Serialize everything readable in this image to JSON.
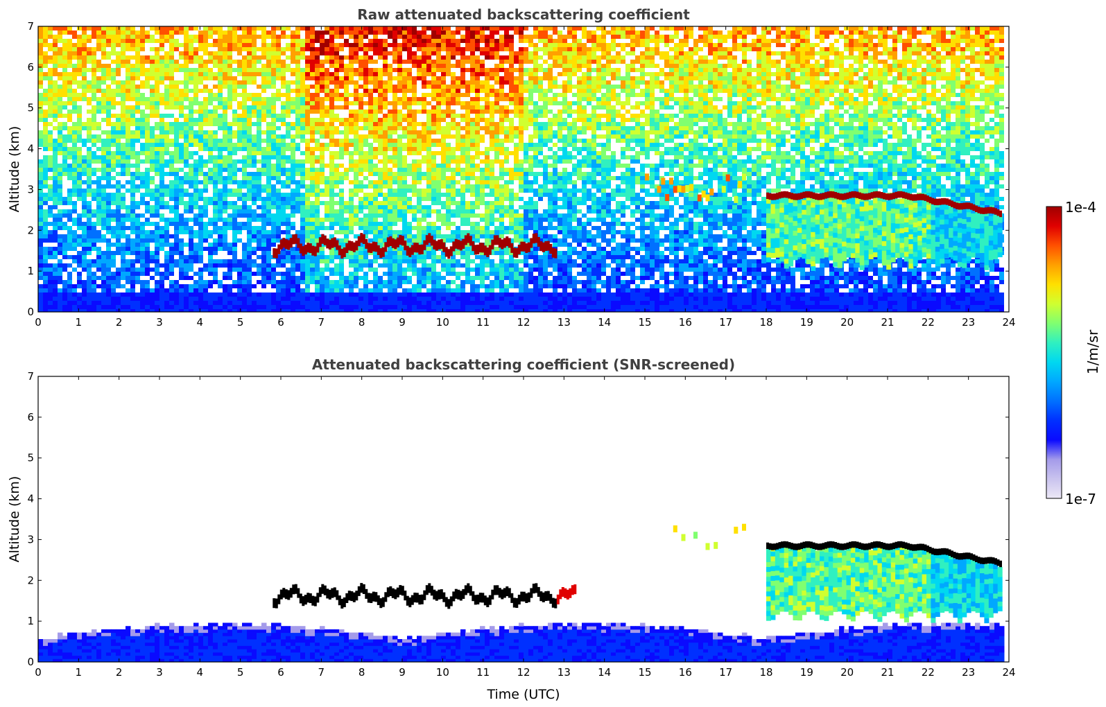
{
  "chart_data": [
    {
      "type": "heatmap",
      "panel": "top",
      "title": "Raw attenuated backscattering coefficient",
      "xlabel": "",
      "ylabel": "Altitude (km)",
      "xlim": [
        0,
        24
      ],
      "ylim": [
        0,
        7
      ],
      "x_ticks": [
        0,
        1,
        2,
        3,
        4,
        5,
        6,
        7,
        8,
        9,
        10,
        11,
        12,
        13,
        14,
        15,
        16,
        17,
        18,
        19,
        20,
        21,
        22,
        23,
        24
      ],
      "y_ticks": [
        0,
        1,
        2,
        3,
        4,
        5,
        6,
        7
      ],
      "data_end_hour": 23.8,
      "features": [
        {
          "name": "boundary layer",
          "start": 0,
          "end": 23.8,
          "bottom_km": 0,
          "top_km": 0.5
        },
        {
          "name": "cloud layer 1",
          "start": 5.8,
          "end": 12.8,
          "altitude_km": 1.65
        },
        {
          "name": "cloud layer 2",
          "start": 18.0,
          "end": 23.8,
          "altitude_km_start": 2.85,
          "altitude_km_end": 2.4
        },
        {
          "name": "precipitation virga",
          "start": 18.0,
          "end": 23.8,
          "bottom_km": 1.0,
          "top_km": 2.8
        },
        {
          "name": "mid-level cloud fragments",
          "start": 15.0,
          "end": 17.6,
          "altitude_km": 3.1
        }
      ]
    },
    {
      "type": "heatmap",
      "panel": "bottom",
      "title": "Attenuated backscattering coefficient (SNR-screened)",
      "xlabel": "Time (UTC)",
      "ylabel": "Altitude (km)",
      "xlim": [
        0,
        24
      ],
      "ylim": [
        0,
        7
      ],
      "x_ticks": [
        0,
        1,
        2,
        3,
        4,
        5,
        6,
        7,
        8,
        9,
        10,
        11,
        12,
        13,
        14,
        15,
        16,
        17,
        18,
        19,
        20,
        21,
        22,
        23,
        24
      ],
      "y_ticks": [
        0,
        1,
        2,
        3,
        4,
        5,
        6,
        7
      ],
      "data_end_hour": 23.8,
      "features": [
        {
          "name": "boundary layer",
          "start": 0,
          "end": 23.8,
          "bottom_km": 0,
          "top_km": 0.9
        },
        {
          "name": "cloud layer 1",
          "start": 5.8,
          "end": 13.3,
          "altitude_km": 1.65
        },
        {
          "name": "cloud layer 2",
          "start": 18.0,
          "end": 23.8,
          "altitude_km_start": 2.85,
          "altitude_km_end": 2.4
        },
        {
          "name": "precipitation virga",
          "start": 18.0,
          "end": 23.8,
          "bottom_km": 0.95,
          "top_km": 2.8
        }
      ]
    }
  ],
  "colorbar": {
    "label": "1/m/sr",
    "max_label": "1e-4",
    "min_label": "1e-7",
    "colors": [
      "#ece8f6",
      "#c9c3ee",
      "#a49bea",
      "#0a0aff",
      "#0030ff",
      "#0070ff",
      "#00a8ff",
      "#00d8f0",
      "#30f0c0",
      "#80ff70",
      "#d0ff30",
      "#ffe000",
      "#ffa000",
      "#ff5000",
      "#e00000",
      "#a00000"
    ]
  }
}
